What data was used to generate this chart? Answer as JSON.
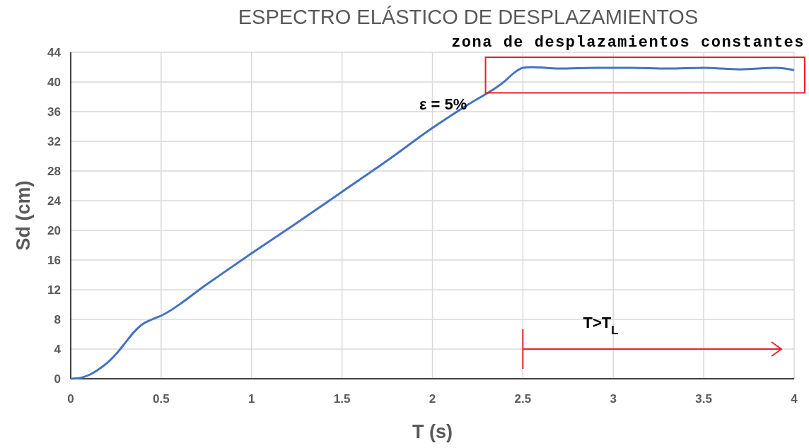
{
  "chart_data": {
    "type": "line",
    "title": "ESPECTRO ELÁSTICO DE DESPLAZAMIENTOS",
    "xlabel": "T (s)",
    "ylabel": "Sd (cm)",
    "x": [
      0,
      0.05,
      0.1,
      0.15,
      0.2,
      0.25,
      0.3,
      0.35,
      0.4,
      0.45,
      0.5,
      0.75,
      1,
      1.25,
      1.5,
      1.75,
      2,
      2.2,
      2.4,
      2.45,
      2.5,
      2.55,
      2.7,
      2.9,
      3.1,
      3.3,
      3.5,
      3.7,
      3.9,
      4
    ],
    "series": [
      {
        "color": "#4472c4",
        "values": [
          0,
          0.1,
          0.5,
          1.2,
          2.1,
          3.3,
          4.8,
          6.3,
          7.4,
          8.0,
          8.5,
          12.7,
          16.9,
          21.0,
          25.2,
          29.4,
          33.8,
          37.0,
          40.1,
          41.2,
          41.9,
          42.0,
          41.8,
          41.9,
          41.9,
          41.8,
          41.9,
          41.7,
          41.9,
          41.6
        ]
      }
    ],
    "xlim": [
      0,
      4
    ],
    "ylim": [
      0,
      44
    ],
    "xticks": [
      0,
      0.5,
      1,
      1.5,
      2,
      2.5,
      3,
      3.5,
      4
    ],
    "yticks": [
      0,
      4,
      8,
      12,
      16,
      20,
      24,
      28,
      32,
      36,
      40,
      44
    ],
    "grid": true,
    "line_style": "solid",
    "marker": "none",
    "annotations": [
      "ε = 5%",
      "zona de desplazamientos constantes",
      "T>T$_{L}$"
    ]
  }
}
